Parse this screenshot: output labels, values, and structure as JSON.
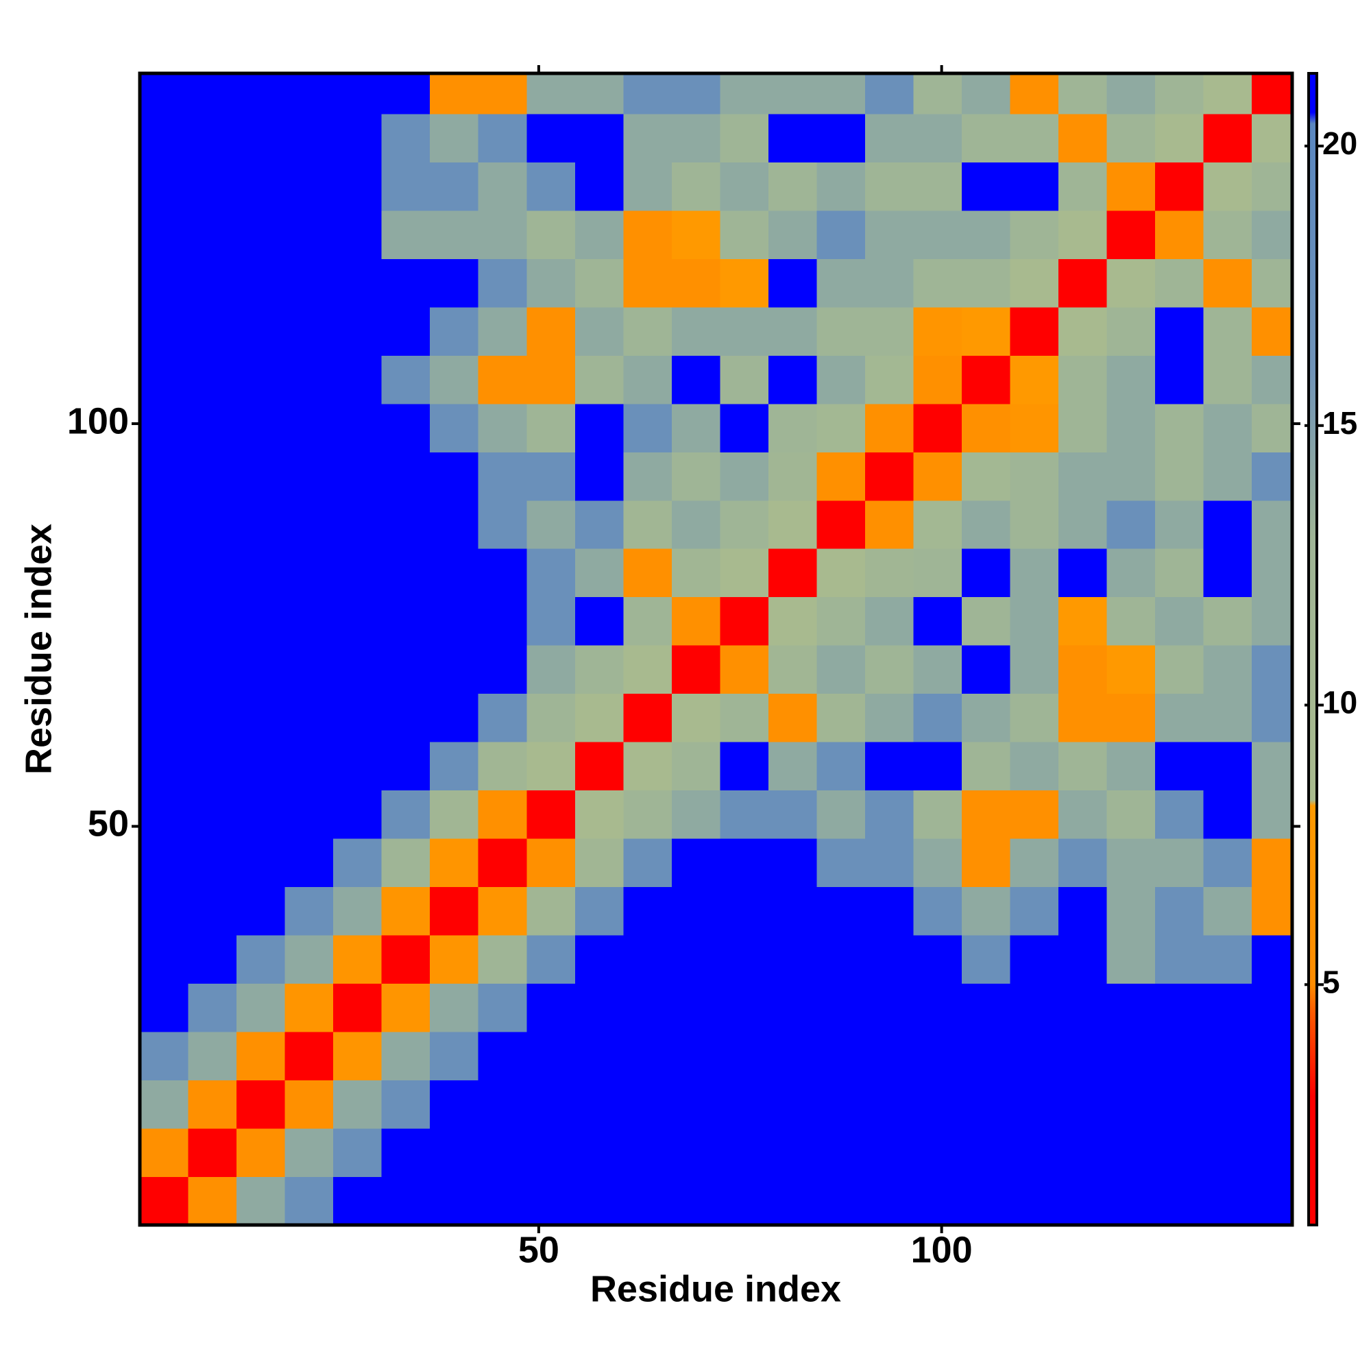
{
  "chart_data": {
    "type": "heatmap",
    "x_label": "Residue index",
    "y_label": "Residue index",
    "xlim": [
      0.5,
      143.5
    ],
    "ylim": [
      0.5,
      143.5
    ],
    "xticks": [
      50,
      100
    ],
    "yticks": [
      50,
      100
    ],
    "zlim": [
      0.7,
      21.3
    ],
    "zticks": [
      5,
      10,
      15,
      20
    ],
    "colorscale": [
      [
        0.7,
        "#ff0000"
      ],
      [
        3,
        "#ff0000"
      ],
      [
        4.5,
        "#ff5a00"
      ],
      [
        5,
        "#ff8c00"
      ],
      [
        8.2,
        "#ff9a00"
      ],
      [
        8.3,
        "#a9bb8e"
      ],
      [
        13,
        "#9fb596"
      ],
      [
        16,
        "#6f93b8"
      ],
      [
        20.4,
        "#5a87c0"
      ],
      [
        20.6,
        "#0000ff"
      ],
      [
        21.3,
        "#0000ff"
      ]
    ],
    "xbins": [
      0.5,
      6.5,
      12.5,
      18.5,
      24.5,
      30.5,
      36.5,
      42.5,
      48.5,
      54.5,
      60.5,
      66.5,
      72.5,
      78.5,
      84.5,
      90.5,
      96.5,
      102.5,
      108.5,
      114.5,
      120.5,
      126.5,
      132.5,
      138.5,
      143.5
    ],
    "ybins": [
      0.5,
      6.5,
      12.5,
      18.5,
      24.5,
      30.5,
      36.5,
      42.5,
      48.5,
      54.5,
      60.5,
      66.5,
      72.5,
      78.5,
      84.5,
      90.5,
      96.5,
      102.5,
      108.5,
      114.5,
      120.5,
      126.5,
      132.5,
      138.5,
      143.5
    ],
    "z": [
      [
        2,
        6,
        14,
        17,
        21,
        21,
        21,
        21,
        21,
        21,
        21,
        21,
        21,
        21,
        21,
        21,
        21,
        21,
        21,
        21,
        21,
        21,
        21,
        21
      ],
      [
        6,
        2,
        6,
        14,
        17,
        21,
        21,
        21,
        21,
        21,
        21,
        21,
        21,
        21,
        21,
        21,
        21,
        21,
        21,
        21,
        21,
        21,
        21,
        21
      ],
      [
        14,
        6,
        2,
        6,
        14,
        17,
        21,
        21,
        21,
        21,
        21,
        21,
        21,
        21,
        21,
        21,
        21,
        21,
        21,
        21,
        21,
        21,
        21,
        21
      ],
      [
        17,
        14,
        6,
        2,
        7,
        14,
        17,
        21,
        21,
        21,
        21,
        21,
        21,
        21,
        21,
        21,
        21,
        21,
        21,
        21,
        21,
        21,
        21,
        21
      ],
      [
        21,
        17,
        14,
        7,
        2,
        7,
        14,
        17,
        21,
        21,
        21,
        21,
        21,
        21,
        21,
        21,
        21,
        21,
        21,
        21,
        21,
        21,
        21,
        21
      ],
      [
        21,
        21,
        17,
        14,
        7,
        2,
        7,
        13,
        17,
        21,
        21,
        21,
        21,
        21,
        21,
        21,
        21,
        17,
        21,
        21,
        14,
        17,
        17,
        21
      ],
      [
        21,
        21,
        21,
        17,
        14,
        7,
        2,
        7,
        12,
        17,
        21,
        21,
        21,
        21,
        21,
        21,
        17,
        14,
        17,
        21,
        14,
        17,
        14,
        6
      ],
      [
        21,
        21,
        21,
        21,
        17,
        13,
        7,
        2,
        6,
        12,
        17,
        21,
        21,
        21,
        17,
        17,
        14,
        6,
        14,
        17,
        14,
        14,
        17,
        6
      ],
      [
        21,
        21,
        21,
        21,
        21,
        17,
        12,
        6,
        2,
        9,
        13,
        14,
        17,
        17,
        14,
        17,
        13,
        6,
        6,
        14,
        13,
        17,
        21,
        14
      ],
      [
        21,
        21,
        21,
        21,
        21,
        21,
        17,
        12,
        9,
        2,
        9,
        13,
        21,
        14,
        17,
        21,
        21,
        13,
        14,
        13,
        14,
        21,
        21,
        14
      ],
      [
        21,
        21,
        21,
        21,
        21,
        21,
        21,
        17,
        13,
        9,
        2,
        9,
        13,
        6,
        12,
        14,
        17,
        14,
        13,
        6,
        6,
        14,
        14,
        17
      ],
      [
        21,
        21,
        21,
        21,
        21,
        21,
        21,
        21,
        14,
        13,
        9,
        2,
        6,
        12,
        14,
        13,
        14,
        21,
        14,
        6,
        8,
        13,
        14,
        17
      ],
      [
        21,
        21,
        21,
        21,
        21,
        21,
        21,
        21,
        17,
        21,
        13,
        6,
        2,
        9,
        13,
        14,
        21,
        13,
        14,
        8,
        13,
        14,
        13,
        14
      ],
      [
        21,
        21,
        21,
        21,
        21,
        21,
        21,
        21,
        17,
        14,
        6,
        12,
        9,
        2,
        9,
        12,
        13,
        21,
        14,
        21,
        14,
        13,
        21,
        14
      ],
      [
        21,
        21,
        21,
        21,
        21,
        21,
        21,
        17,
        14,
        17,
        12,
        14,
        13,
        9,
        2,
        6,
        11,
        14,
        13,
        14,
        17,
        14,
        21,
        14
      ],
      [
        21,
        21,
        21,
        21,
        21,
        21,
        21,
        17,
        17,
        21,
        14,
        13,
        14,
        12,
        6,
        2,
        6,
        11,
        13,
        14,
        14,
        13,
        14,
        17
      ],
      [
        21,
        21,
        21,
        21,
        21,
        21,
        17,
        14,
        13,
        21,
        17,
        14,
        21,
        13,
        11,
        6,
        2,
        6,
        7,
        13,
        14,
        13,
        14,
        13
      ],
      [
        21,
        21,
        21,
        21,
        21,
        17,
        14,
        6,
        6,
        13,
        14,
        21,
        13,
        21,
        14,
        11,
        6,
        2,
        8,
        13,
        14,
        21,
        13,
        14
      ],
      [
        21,
        21,
        21,
        21,
        21,
        21,
        17,
        14,
        6,
        14,
        13,
        14,
        14,
        14,
        13,
        13,
        7,
        8,
        2,
        9,
        13,
        21,
        13,
        6
      ],
      [
        21,
        21,
        21,
        21,
        21,
        21,
        21,
        17,
        14,
        13,
        6,
        6,
        8,
        21,
        14,
        14,
        13,
        13,
        9,
        2,
        9,
        13,
        6,
        13
      ],
      [
        21,
        21,
        21,
        21,
        21,
        14,
        14,
        14,
        13,
        14,
        6,
        8,
        13,
        14,
        17,
        14,
        14,
        14,
        13,
        9,
        2,
        6,
        13,
        14
      ],
      [
        21,
        21,
        21,
        21,
        21,
        17,
        17,
        14,
        17,
        21,
        14,
        13,
        14,
        13,
        14,
        13,
        13,
        21,
        21,
        13,
        6,
        2,
        9,
        13
      ],
      [
        21,
        21,
        21,
        21,
        21,
        17,
        14,
        17,
        21,
        21,
        14,
        14,
        13,
        21,
        21,
        14,
        14,
        13,
        13,
        6,
        13,
        9,
        2,
        9
      ],
      [
        21,
        21,
        21,
        21,
        21,
        21,
        6,
        6,
        14,
        14,
        17,
        17,
        14,
        14,
        14,
        17,
        13,
        14,
        6,
        13,
        14,
        13,
        9,
        2
      ]
    ]
  }
}
